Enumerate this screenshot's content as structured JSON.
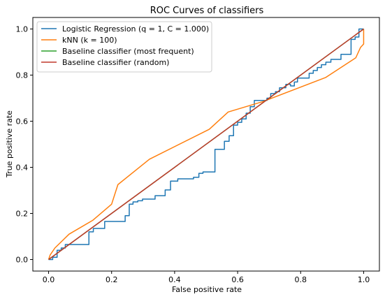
{
  "chart_data": {
    "type": "line",
    "title": "ROC Curves of classifiers",
    "xlabel": "False positive rate",
    "ylabel": "True positive rate",
    "xlim": [
      -0.05,
      1.05
    ],
    "ylim": [
      -0.05,
      1.05
    ],
    "xticks": [
      0.0,
      0.2,
      0.4,
      0.6,
      0.8,
      1.0
    ],
    "yticks": [
      0.0,
      0.2,
      0.4,
      0.6,
      0.8,
      1.0
    ],
    "tick_labels": [
      "0.0",
      "0.2",
      "0.4",
      "0.6",
      "0.8",
      "1.0"
    ],
    "grid": false,
    "legend_position": "top-left",
    "series": [
      {
        "name": "Logistic Regression (q = 1, C = 1.000)",
        "color": "#1f77b4",
        "points": [
          [
            0.0,
            0.0
          ],
          [
            0.013,
            0.0
          ],
          [
            0.013,
            0.01
          ],
          [
            0.027,
            0.01
          ],
          [
            0.027,
            0.04
          ],
          [
            0.04,
            0.04
          ],
          [
            0.04,
            0.05
          ],
          [
            0.053,
            0.05
          ],
          [
            0.053,
            0.065
          ],
          [
            0.128,
            0.065
          ],
          [
            0.128,
            0.12
          ],
          [
            0.142,
            0.12
          ],
          [
            0.142,
            0.135
          ],
          [
            0.178,
            0.135
          ],
          [
            0.178,
            0.165
          ],
          [
            0.243,
            0.165
          ],
          [
            0.243,
            0.19
          ],
          [
            0.256,
            0.19
          ],
          [
            0.256,
            0.24
          ],
          [
            0.268,
            0.24
          ],
          [
            0.268,
            0.25
          ],
          [
            0.283,
            0.25
          ],
          [
            0.283,
            0.255
          ],
          [
            0.298,
            0.255
          ],
          [
            0.298,
            0.262
          ],
          [
            0.338,
            0.262
          ],
          [
            0.338,
            0.277
          ],
          [
            0.37,
            0.277
          ],
          [
            0.37,
            0.302
          ],
          [
            0.387,
            0.302
          ],
          [
            0.387,
            0.34
          ],
          [
            0.41,
            0.34
          ],
          [
            0.41,
            0.35
          ],
          [
            0.46,
            0.35
          ],
          [
            0.46,
            0.357
          ],
          [
            0.477,
            0.357
          ],
          [
            0.477,
            0.374
          ],
          [
            0.49,
            0.374
          ],
          [
            0.49,
            0.38
          ],
          [
            0.528,
            0.38
          ],
          [
            0.528,
            0.478
          ],
          [
            0.558,
            0.478
          ],
          [
            0.558,
            0.513
          ],
          [
            0.573,
            0.513
          ],
          [
            0.573,
            0.537
          ],
          [
            0.587,
            0.537
          ],
          [
            0.587,
            0.583
          ],
          [
            0.6,
            0.583
          ],
          [
            0.6,
            0.595
          ],
          [
            0.613,
            0.595
          ],
          [
            0.613,
            0.61
          ],
          [
            0.627,
            0.61
          ],
          [
            0.627,
            0.635
          ],
          [
            0.64,
            0.635
          ],
          [
            0.64,
            0.663
          ],
          [
            0.653,
            0.663
          ],
          [
            0.653,
            0.69
          ],
          [
            0.693,
            0.69
          ],
          [
            0.693,
            0.7
          ],
          [
            0.705,
            0.7
          ],
          [
            0.705,
            0.72
          ],
          [
            0.72,
            0.72
          ],
          [
            0.72,
            0.728
          ],
          [
            0.733,
            0.728
          ],
          [
            0.733,
            0.745
          ],
          [
            0.753,
            0.745
          ],
          [
            0.753,
            0.76
          ],
          [
            0.768,
            0.76
          ],
          [
            0.768,
            0.753
          ],
          [
            0.78,
            0.753
          ],
          [
            0.78,
            0.77
          ],
          [
            0.79,
            0.77
          ],
          [
            0.79,
            0.787
          ],
          [
            0.827,
            0.787
          ],
          [
            0.827,
            0.808
          ],
          [
            0.84,
            0.808
          ],
          [
            0.84,
            0.82
          ],
          [
            0.853,
            0.82
          ],
          [
            0.853,
            0.833
          ],
          [
            0.866,
            0.833
          ],
          [
            0.866,
            0.845
          ],
          [
            0.88,
            0.845
          ],
          [
            0.88,
            0.856
          ],
          [
            0.896,
            0.856
          ],
          [
            0.896,
            0.868
          ],
          [
            0.928,
            0.868
          ],
          [
            0.928,
            0.89
          ],
          [
            0.96,
            0.89
          ],
          [
            0.96,
            0.955
          ],
          [
            0.973,
            0.955
          ],
          [
            0.973,
            0.965
          ],
          [
            0.985,
            0.965
          ],
          [
            0.985,
            1.0
          ],
          [
            1.0,
            1.0
          ]
        ]
      },
      {
        "name": "kNN (k = 100)",
        "color": "#ff7f0e",
        "points": [
          [
            0.0,
            0.0
          ],
          [
            0.005,
            0.02
          ],
          [
            0.02,
            0.05
          ],
          [
            0.065,
            0.11
          ],
          [
            0.14,
            0.17
          ],
          [
            0.2,
            0.24
          ],
          [
            0.22,
            0.325
          ],
          [
            0.32,
            0.435
          ],
          [
            0.51,
            0.565
          ],
          [
            0.57,
            0.64
          ],
          [
            0.68,
            0.685
          ],
          [
            0.88,
            0.79
          ],
          [
            0.975,
            0.875
          ],
          [
            0.99,
            0.92
          ],
          [
            1.0,
            0.935
          ],
          [
            1.0,
            1.0
          ]
        ]
      },
      {
        "name": "Baseline classifier (most frequent)",
        "color": "#2ca02c",
        "points": [
          [
            0.0,
            0.0
          ],
          [
            1.0,
            1.0
          ]
        ]
      },
      {
        "name": "Baseline classifier (random)",
        "color": "#c0392b",
        "points": [
          [
            0.0,
            0.0
          ],
          [
            1.0,
            1.0
          ]
        ]
      }
    ]
  }
}
